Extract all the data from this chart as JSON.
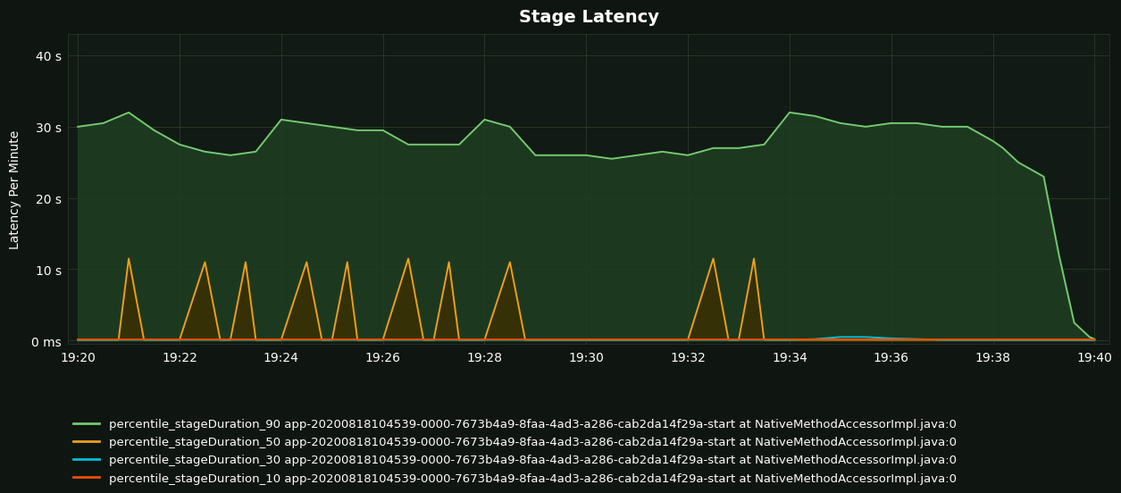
{
  "title": "Stage Latency",
  "ylabel": "Latency Per Minute",
  "background_color": "#0f1510",
  "plot_bg_color": "#111a14",
  "grid_color": "#2a3a2a",
  "text_color": "#ffffff",
  "title_fontsize": 14,
  "label_fontsize": 10,
  "legend_fontsize": 9.5,
  "ytick_labels": [
    "0 ms",
    "10 s",
    "20 s",
    "30 s",
    "40 s"
  ],
  "ytick_values": [
    0,
    10,
    20,
    30,
    40
  ],
  "ylim": [
    -0.5,
    43
  ],
  "xtick_labels": [
    "19:20",
    "19:22",
    "19:24",
    "19:26",
    "19:28",
    "19:30",
    "19:32",
    "19:34",
    "19:36",
    "19:38",
    "19:40"
  ],
  "xtick_values": [
    0,
    2,
    4,
    6,
    8,
    10,
    12,
    14,
    16,
    18,
    20
  ],
  "xlim": [
    -0.2,
    20.3
  ],
  "series": [
    {
      "name": "percentile_stageDuration_90 app-20200818104539-0000-7673b4a9-8faa-4ad3-a286-cab2da14f29a-start at NativeMethodAccessorImpl.java:0",
      "color": "#73c96e",
      "linewidth": 1.4,
      "x": [
        0.0,
        0.5,
        1.0,
        1.5,
        2.0,
        2.5,
        3.0,
        3.5,
        4.0,
        4.5,
        5.0,
        5.5,
        6.0,
        6.5,
        7.0,
        7.5,
        8.0,
        8.5,
        9.0,
        9.5,
        10.0,
        10.5,
        11.0,
        11.5,
        12.0,
        12.5,
        13.0,
        13.5,
        14.0,
        14.5,
        15.0,
        15.5,
        16.0,
        16.5,
        17.0,
        17.5,
        18.0,
        18.2,
        18.5,
        19.0,
        19.3,
        19.6,
        19.9,
        20.0
      ],
      "y": [
        30.0,
        30.5,
        32.0,
        29.5,
        27.5,
        26.5,
        26.0,
        26.5,
        31.0,
        30.5,
        30.0,
        29.5,
        29.5,
        27.5,
        27.5,
        27.5,
        31.0,
        30.0,
        26.0,
        26.0,
        26.0,
        25.5,
        26.0,
        26.5,
        26.0,
        27.0,
        27.0,
        27.5,
        32.0,
        31.5,
        30.5,
        30.0,
        30.5,
        30.5,
        30.0,
        30.0,
        28.0,
        27.0,
        25.0,
        23.0,
        12.0,
        2.5,
        0.5,
        0.2
      ],
      "fill": true,
      "fill_color": "#1e3d22",
      "fill_alpha": 0.9
    },
    {
      "name": "percentile_stageDuration_50 app-20200818104539-0000-7673b4a9-8faa-4ad3-a286-cab2da14f29a-start at NativeMethodAccessorImpl.java:0",
      "color": "#e8a020",
      "linewidth": 1.4,
      "x": [
        0.0,
        0.8,
        1.0,
        1.3,
        1.5,
        2.0,
        2.5,
        2.8,
        3.0,
        3.3,
        3.5,
        4.0,
        4.5,
        4.8,
        5.0,
        5.3,
        5.5,
        6.0,
        6.5,
        6.8,
        7.0,
        7.3,
        7.5,
        8.0,
        8.5,
        8.8,
        9.0,
        9.3,
        9.5,
        10.0,
        10.5,
        12.0,
        12.5,
        12.8,
        13.0,
        13.3,
        13.5,
        14.0,
        15.0,
        16.0,
        17.0,
        18.0,
        19.0,
        20.0
      ],
      "y": [
        0.1,
        0.1,
        11.5,
        0.1,
        0.1,
        0.1,
        11.0,
        0.1,
        0.1,
        11.0,
        0.1,
        0.1,
        11.0,
        0.1,
        0.1,
        11.0,
        0.1,
        0.1,
        11.5,
        0.1,
        0.1,
        11.0,
        0.1,
        0.1,
        11.0,
        0.1,
        0.1,
        0.1,
        0.1,
        0.1,
        0.1,
        0.1,
        11.5,
        0.1,
        0.1,
        11.5,
        0.1,
        0.1,
        0.1,
        0.1,
        0.1,
        0.1,
        0.1,
        0.1
      ],
      "fill": true,
      "fill_color": "#3d2e00",
      "fill_alpha": 0.8
    },
    {
      "name": "percentile_stageDuration_30 app-20200818104539-0000-7673b4a9-8faa-4ad3-a286-cab2da14f29a-start at NativeMethodAccessorImpl.java:0",
      "color": "#00bcd4",
      "linewidth": 1.4,
      "x": [
        0.0,
        5.0,
        10.0,
        14.0,
        14.5,
        15.0,
        15.5,
        16.0,
        16.5,
        17.0,
        18.0,
        20.0
      ],
      "y": [
        0.1,
        0.1,
        0.1,
        0.1,
        0.2,
        0.5,
        0.5,
        0.3,
        0.2,
        0.1,
        0.1,
        0.1
      ],
      "fill": false
    },
    {
      "name": "percentile_stageDuration_10 app-20200818104539-0000-7673b4a9-8faa-4ad3-a286-cab2da14f29a-start at NativeMethodAccessorImpl.java:0",
      "color": "#e8500a",
      "linewidth": 1.4,
      "x": [
        0.0,
        10.0,
        20.0
      ],
      "y": [
        0.1,
        0.1,
        0.1
      ],
      "fill": false
    }
  ]
}
